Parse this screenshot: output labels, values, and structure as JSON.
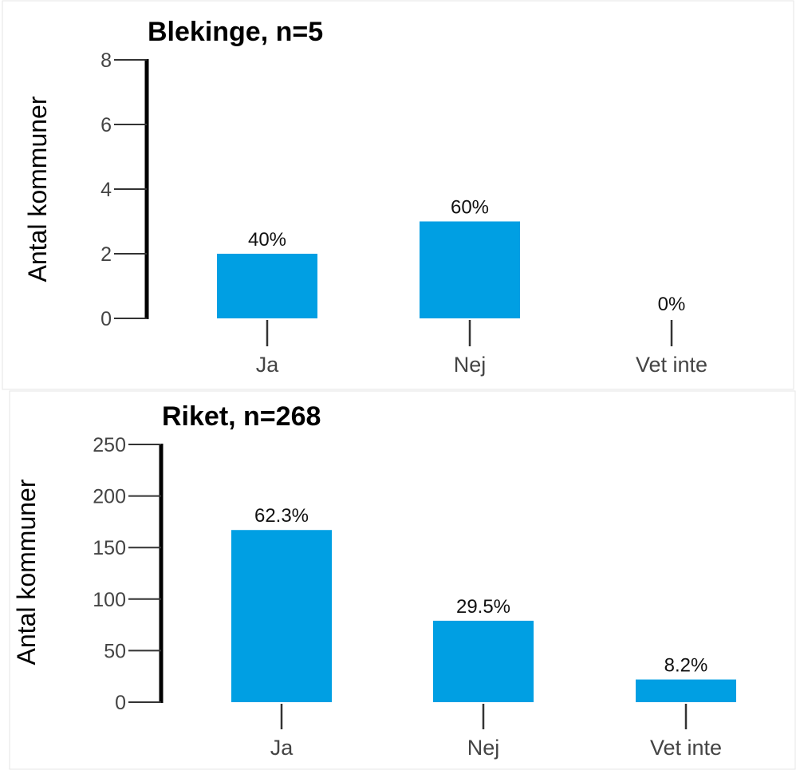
{
  "chart_data": [
    {
      "type": "bar",
      "title": "Blekinge, n=5",
      "ylabel": "Antal kommuner",
      "categories": [
        "Ja",
        "Nej",
        "Vet inte"
      ],
      "values": [
        2,
        3,
        0
      ],
      "data_labels": [
        "40%",
        "60%",
        "0%"
      ],
      "ylim": [
        0,
        8
      ],
      "yticks": [
        0,
        2,
        4,
        6,
        8
      ],
      "bar_color": "#009FE3"
    },
    {
      "type": "bar",
      "title": "Riket, n=268",
      "ylabel": "Antal kommuner",
      "categories": [
        "Ja",
        "Nej",
        "Vet inte"
      ],
      "values": [
        167,
        79,
        22
      ],
      "data_labels": [
        "62.3%",
        "29.5%",
        "8.2%"
      ],
      "ylim": [
        0,
        250
      ],
      "yticks": [
        0,
        50,
        100,
        150,
        200,
        250
      ],
      "bar_color": "#009FE3"
    }
  ]
}
